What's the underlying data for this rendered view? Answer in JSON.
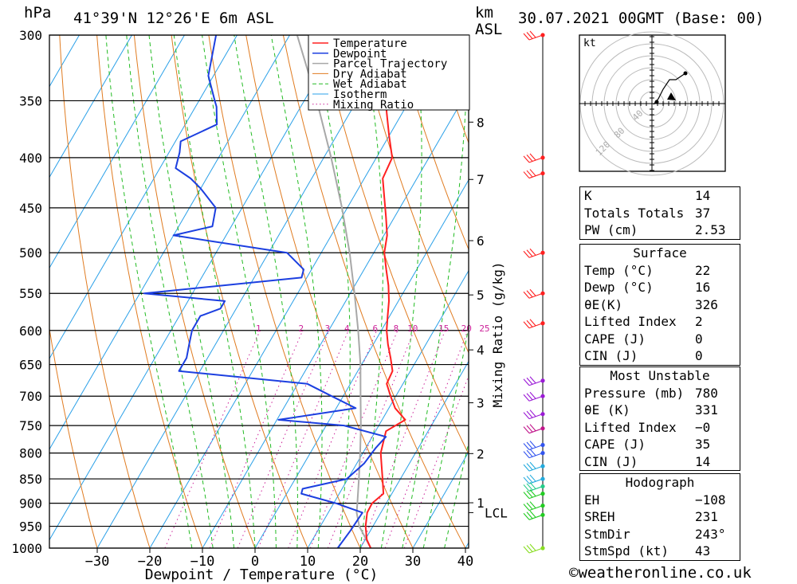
{
  "header": {
    "pressure_unit": "hPa",
    "location": "41°39'N 12°26'E 6m ASL",
    "km_unit": "km",
    "asl": "ASL",
    "datetime": "30.07.2021 00GMT (Base: 00)"
  },
  "chart_data": {
    "type": "line",
    "title": "41°39'N 12°26'E 6m ASL",
    "xlabel": "Dewpoint / Temperature (°C)",
    "ylabel": "hPa",
    "y2label": "Mixing Ratio (g/kg)",
    "xlim": [
      -40,
      40
    ],
    "ylim": [
      1000,
      300
    ],
    "skew": "skew-T log-P",
    "x_ticks": [
      -30,
      -20,
      -10,
      0,
      10,
      20,
      30,
      40
    ],
    "pressure_levels": [
      300,
      350,
      400,
      450,
      500,
      550,
      600,
      650,
      700,
      750,
      800,
      850,
      900,
      950,
      1000
    ],
    "km_ticks": [
      {
        "label": "8",
        "p": 368
      },
      {
        "label": "7",
        "p": 421
      },
      {
        "label": "6",
        "p": 486
      },
      {
        "label": "5",
        "p": 552
      },
      {
        "label": "4",
        "p": 628
      },
      {
        "label": "3",
        "p": 711
      },
      {
        "label": "2",
        "p": 801
      },
      {
        "label": "1",
        "p": 899
      },
      {
        "label": "LCL",
        "p": 920
      }
    ],
    "mixing_ratio_labels": [
      "1",
      "2",
      "3",
      "4",
      "6",
      "8",
      "10",
      "15",
      "20",
      "25"
    ],
    "legend": [
      "Temperature",
      "Dewpoint",
      "Parcel Trajectory",
      "Dry Adiabat",
      "Wet Adiabat",
      "Isotherm",
      "Mixing Ratio"
    ],
    "legend_placement": "top-center",
    "colors": {
      "temperature": "#ff2020",
      "dewpoint": "#1c3fe0",
      "parcel": "#a8a8a8",
      "dry_adiabat": "#e07b20",
      "wet_adiabat": "#22bb22",
      "isotherm": "#2aa0e8",
      "mixing_ratio": "#cc2299"
    },
    "series": [
      {
        "name": "Temperature",
        "points": [
          [
            1000,
            22.0
          ],
          [
            980,
            20.3
          ],
          [
            950,
            18.6
          ],
          [
            920,
            17.4
          ],
          [
            900,
            17.3
          ],
          [
            880,
            18.4
          ],
          [
            850,
            16.6
          ],
          [
            820,
            14.7
          ],
          [
            800,
            13.4
          ],
          [
            780,
            12.7
          ],
          [
            760,
            12.0
          ],
          [
            740,
            14.4
          ],
          [
            720,
            11.2
          ],
          [
            700,
            9.0
          ],
          [
            680,
            6.9
          ],
          [
            660,
            6.6
          ],
          [
            640,
            4.8
          ],
          [
            620,
            2.8
          ],
          [
            600,
            1.0
          ],
          [
            580,
            -0.4
          ],
          [
            560,
            -1.8
          ],
          [
            540,
            -3.6
          ],
          [
            520,
            -5.8
          ],
          [
            500,
            -8.0
          ],
          [
            480,
            -9.4
          ],
          [
            460,
            -11.6
          ],
          [
            440,
            -14.0
          ],
          [
            420,
            -16.5
          ],
          [
            400,
            -17.0
          ],
          [
            380,
            -20.0
          ],
          [
            360,
            -23.0
          ],
          [
            340,
            -26.0
          ],
          [
            320,
            -30.0
          ],
          [
            300,
            -34.0
          ]
        ]
      },
      {
        "name": "Dewpoint",
        "points": [
          [
            1000,
            15.7
          ],
          [
            960,
            16.2
          ],
          [
            920,
            16.5
          ],
          [
            900,
            10.4
          ],
          [
            880,
            2.8
          ],
          [
            870,
            2.5
          ],
          [
            850,
            9.8
          ],
          [
            820,
            11.4
          ],
          [
            790,
            11.9
          ],
          [
            770,
            12.6
          ],
          [
            750,
            3.4
          ],
          [
            740,
            -9.7
          ],
          [
            720,
            3.7
          ],
          [
            700,
            -2.2
          ],
          [
            680,
            -8.2
          ],
          [
            660,
            -34.0
          ],
          [
            640,
            -34.0
          ],
          [
            620,
            -35.0
          ],
          [
            600,
            -36.0
          ],
          [
            580,
            -36.0
          ],
          [
            570,
            -33.0
          ],
          [
            560,
            -33.0
          ],
          [
            550,
            -49.2
          ],
          [
            530,
            -21.0
          ],
          [
            520,
            -21.5
          ],
          [
            500,
            -26.5
          ],
          [
            480,
            -50.0
          ],
          [
            470,
            -43.6
          ],
          [
            450,
            -45.0
          ],
          [
            430,
            -50.0
          ],
          [
            420,
            -53.0
          ],
          [
            410,
            -57.0
          ],
          [
            395,
            -58.0
          ],
          [
            385,
            -59.0
          ],
          [
            370,
            -54.0
          ],
          [
            355,
            -56.0
          ],
          [
            350,
            -57.0
          ],
          [
            330,
            -61.0
          ],
          [
            300,
            -64.0
          ]
        ]
      },
      {
        "name": "Parcel Trajectory",
        "points": [
          [
            1000,
            22.0
          ],
          [
            950,
            17.4
          ],
          [
            920,
            15.4
          ],
          [
            900,
            14.5
          ],
          [
            850,
            12.1
          ],
          [
            800,
            9.5
          ],
          [
            750,
            6.6
          ],
          [
            700,
            3.3
          ],
          [
            650,
            -0.2
          ],
          [
            600,
            -4.4
          ],
          [
            550,
            -9.2
          ],
          [
            500,
            -14.6
          ],
          [
            450,
            -21.0
          ],
          [
            400,
            -28.6
          ],
          [
            350,
            -37.6
          ],
          [
            300,
            -48.6
          ]
        ]
      }
    ],
    "wind_barbs": [
      {
        "p": 300,
        "color": "#ff2020"
      },
      {
        "p": 400,
        "color": "#ff2020"
      },
      {
        "p": 415,
        "color": "#ff2020"
      },
      {
        "p": 500,
        "color": "#ff2020"
      },
      {
        "p": 550,
        "color": "#ff2020"
      },
      {
        "p": 590,
        "color": "#ff2020"
      },
      {
        "p": 675,
        "color": "#9b1ad6"
      },
      {
        "p": 700,
        "color": "#9b1ad6"
      },
      {
        "p": 730,
        "color": "#9b1ad6"
      },
      {
        "p": 755,
        "color": "#c0148a"
      },
      {
        "p": 785,
        "color": "#3355ee"
      },
      {
        "p": 800,
        "color": "#3355ee"
      },
      {
        "p": 825,
        "color": "#22aadd"
      },
      {
        "p": 850,
        "color": "#22aadd"
      },
      {
        "p": 865,
        "color": "#22cc88"
      },
      {
        "p": 880,
        "color": "#22cc22"
      },
      {
        "p": 905,
        "color": "#22cc22"
      },
      {
        "p": 925,
        "color": "#22cc22"
      },
      {
        "p": 1000,
        "color": "#88dd22"
      }
    ],
    "hodograph": {
      "unit": "kt",
      "ring_labels": [
        "40",
        "80",
        "120"
      ],
      "trace": [
        [
          2,
          -1
        ],
        [
          8,
          6
        ],
        [
          14,
          18
        ],
        [
          22,
          30
        ],
        [
          30,
          30
        ],
        [
          42,
          38
        ]
      ],
      "storm_motion": {
        "dir_deg": 243,
        "speed_kt": 43
      }
    }
  },
  "indices": [
    {
      "k": "K",
      "v": "14"
    },
    {
      "k": "Totals Totals",
      "v": "37"
    },
    {
      "k": "PW (cm)",
      "v": "2.53"
    }
  ],
  "surface": {
    "title": "Surface",
    "rows": [
      {
        "k": "Temp (°C)",
        "v": "22"
      },
      {
        "k": "Dewp (°C)",
        "v": "16"
      },
      {
        "k": "θE(K)",
        "v": "326"
      },
      {
        "k": "Lifted Index",
        "v": "2"
      },
      {
        "k": "CAPE (J)",
        "v": "0"
      },
      {
        "k": "CIN (J)",
        "v": "0"
      }
    ]
  },
  "most_unstable": {
    "title": "Most Unstable",
    "rows": [
      {
        "k": "Pressure (mb)",
        "v": "780"
      },
      {
        "k": "θE (K)",
        "v": "331"
      },
      {
        "k": "Lifted Index",
        "v": "−0"
      },
      {
        "k": "CAPE (J)",
        "v": "35"
      },
      {
        "k": "CIN (J)",
        "v": "14"
      }
    ]
  },
  "hodograph_table": {
    "title": "Hodograph",
    "rows": [
      {
        "k": "EH",
        "v": "−108"
      },
      {
        "k": "SREH",
        "v": "231"
      },
      {
        "k": "StmDir",
        "v": "243°"
      },
      {
        "k": "StmSpd (kt)",
        "v": "43"
      }
    ]
  },
  "credit": "©weatheronline.co.uk"
}
